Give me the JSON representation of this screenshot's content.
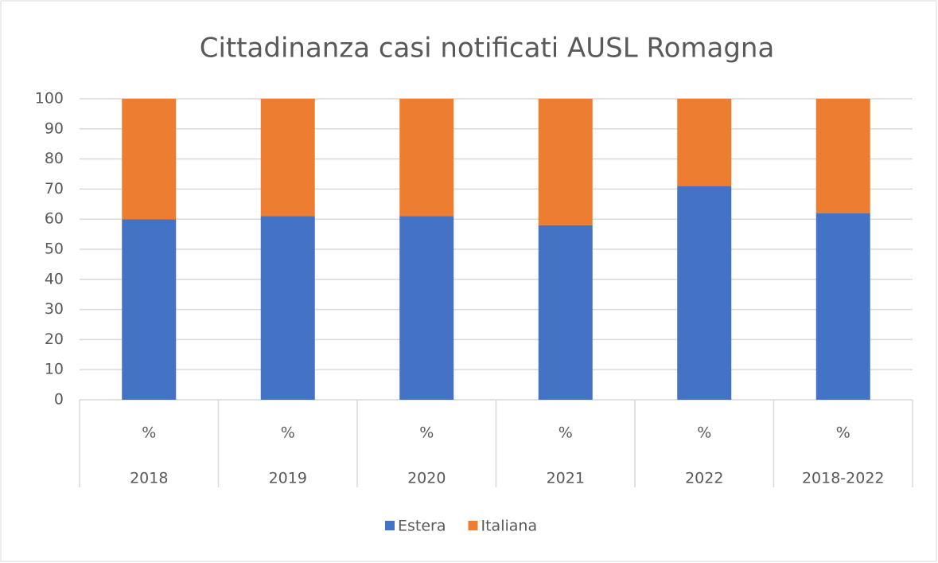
{
  "chart_data": {
    "type": "stacked_bar",
    "title": "Cittadinanza casi notificati AUSL Romagna",
    "categories": [
      "2018",
      "2019",
      "2020",
      "2021",
      "2022",
      "2018-2022"
    ],
    "category_groups": [
      "%",
      "%",
      "%",
      "%",
      "%",
      "%"
    ],
    "series": [
      {
        "name": "Estera",
        "color": "#4472c4",
        "values": [
          60,
          61,
          61,
          58,
          71,
          62
        ]
      },
      {
        "name": "Italiana",
        "color": "#ed7d31",
        "values": [
          40,
          39,
          39,
          42,
          29,
          38
        ]
      }
    ],
    "ylim": [
      0,
      100
    ],
    "yticks": [
      0,
      10,
      20,
      30,
      40,
      50,
      60,
      70,
      80,
      90,
      100
    ],
    "grid": true,
    "legend": "bottom"
  }
}
